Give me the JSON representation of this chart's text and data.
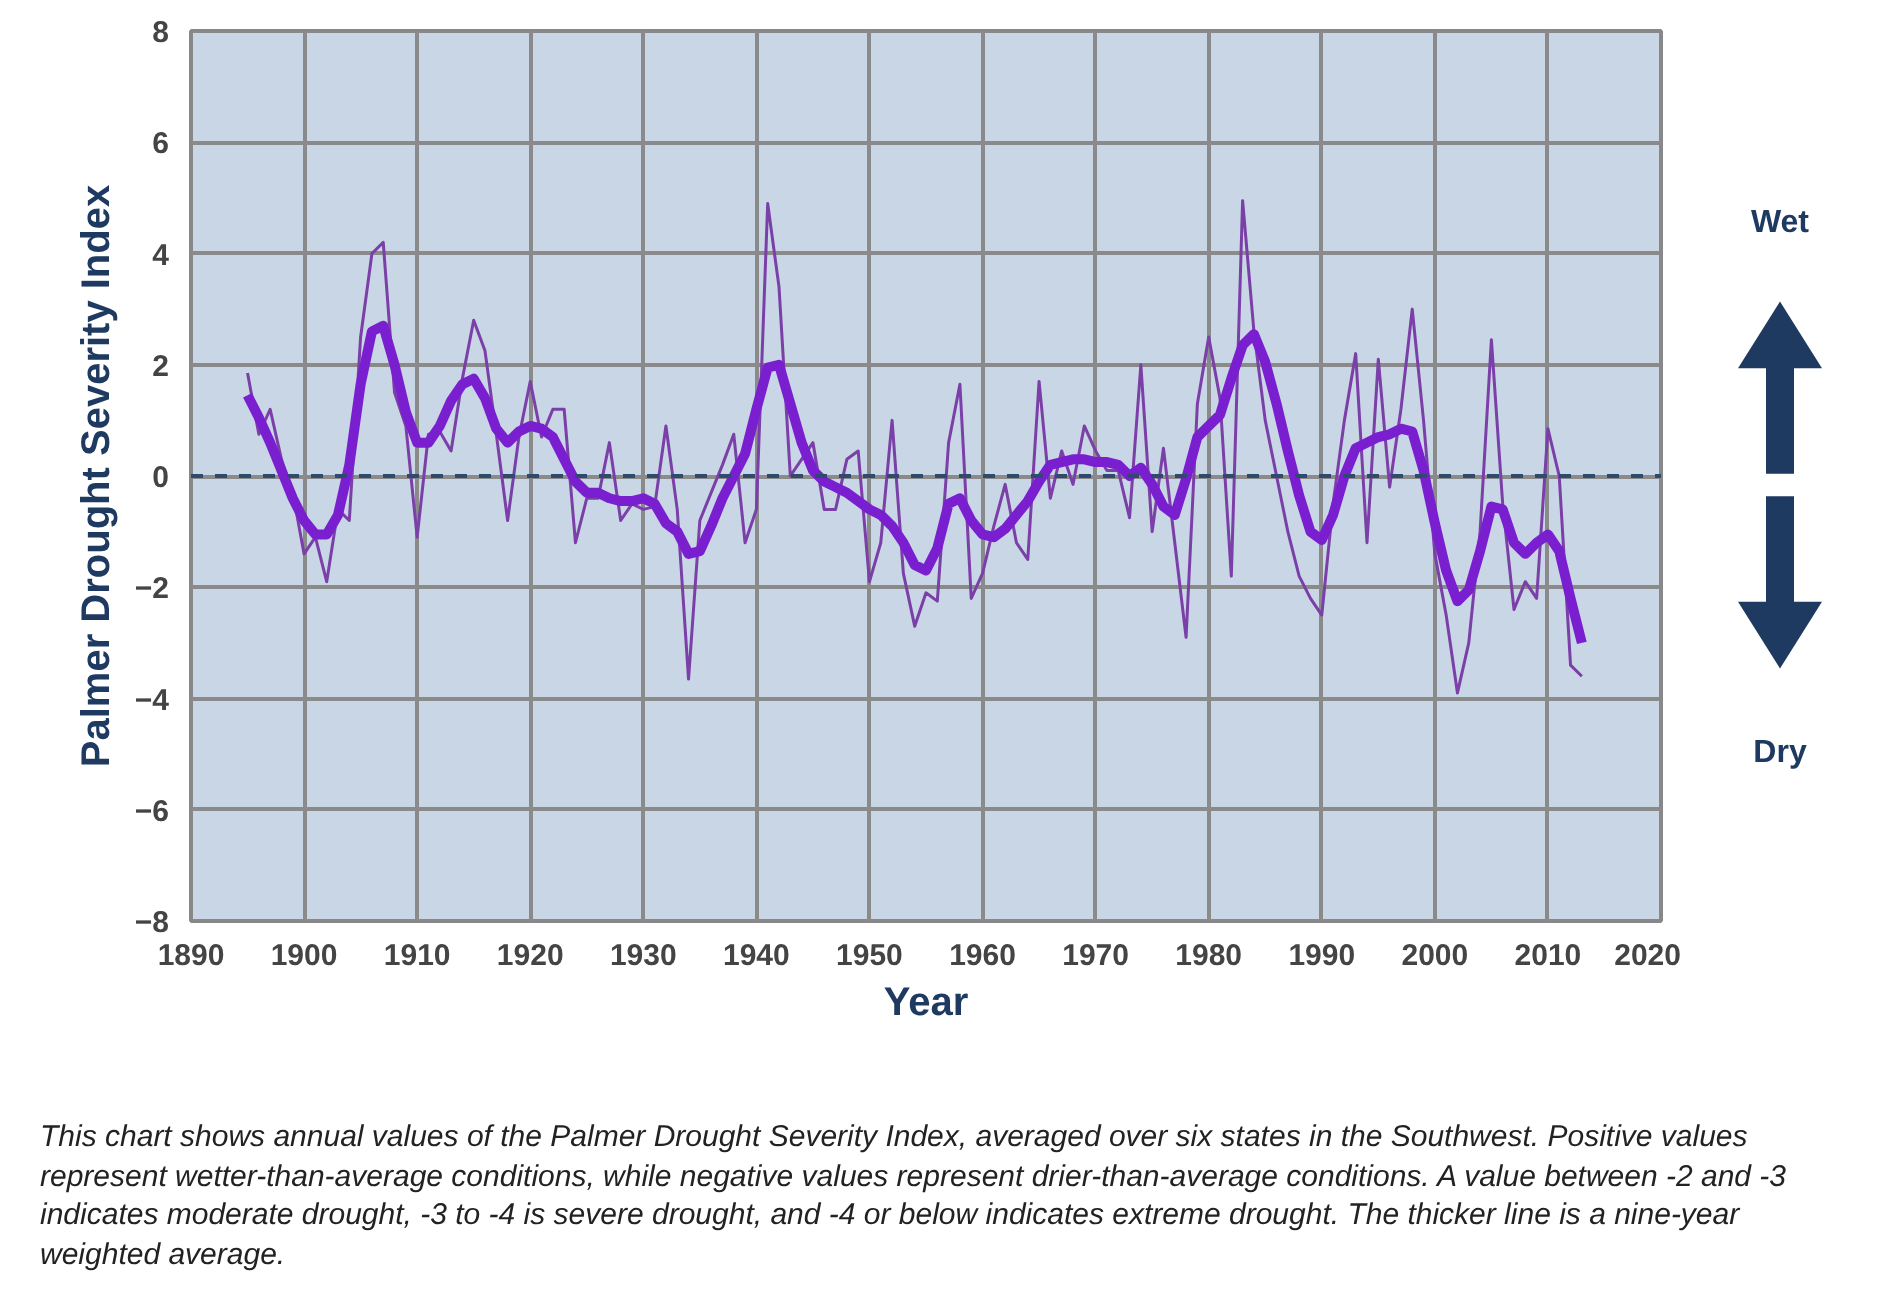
{
  "chart_data": {
    "type": "line",
    "ylabel": "Palmer Drought Severity Index",
    "xlabel": "Year",
    "x": [
      1895,
      1896,
      1897,
      1898,
      1899,
      1900,
      1901,
      1902,
      1903,
      1904,
      1905,
      1906,
      1907,
      1908,
      1909,
      1910,
      1911,
      1912,
      1913,
      1914,
      1915,
      1916,
      1917,
      1918,
      1919,
      1920,
      1921,
      1922,
      1923,
      1924,
      1925,
      1926,
      1927,
      1928,
      1929,
      1930,
      1931,
      1932,
      1933,
      1934,
      1935,
      1936,
      1937,
      1938,
      1939,
      1940,
      1941,
      1942,
      1943,
      1944,
      1945,
      1946,
      1947,
      1948,
      1949,
      1950,
      1951,
      1952,
      1953,
      1954,
      1955,
      1956,
      1957,
      1958,
      1959,
      1960,
      1961,
      1962,
      1963,
      1964,
      1965,
      1966,
      1967,
      1968,
      1969,
      1970,
      1971,
      1972,
      1973,
      1974,
      1975,
      1976,
      1977,
      1978,
      1979,
      1980,
      1981,
      1982,
      1983,
      1984,
      1985,
      1986,
      1987,
      1988,
      1989,
      1990,
      1991,
      1992,
      1993,
      1994,
      1995,
      1996,
      1997,
      1998,
      1999,
      2000,
      2001,
      2002,
      2003,
      2004,
      2005,
      2006,
      2007,
      2008,
      2009,
      2010,
      2011,
      2012,
      2013
    ],
    "series": [
      {
        "color": "#7b3fa8",
        "values": [
          1.85,
          0.75,
          1.2,
          0.3,
          -0.3,
          -1.4,
          -1.1,
          -1.9,
          -0.6,
          -0.8,
          2.5,
          4.0,
          4.2,
          1.5,
          0.9,
          -1.1,
          0.75,
          0.8,
          0.45,
          1.75,
          2.8,
          2.25,
          0.75,
          -0.8,
          0.7,
          1.7,
          0.7,
          1.2,
          1.2,
          -1.2,
          -0.4,
          -0.4,
          0.6,
          -0.8,
          -0.5,
          -0.6,
          -0.55,
          0.9,
          -0.6,
          -3.65,
          -0.8,
          -0.3,
          0.2,
          0.75,
          -1.2,
          -0.6,
          4.9,
          3.4,
          0.0,
          0.3,
          0.6,
          -0.6,
          -0.6,
          0.3,
          0.45,
          -1.9,
          -1.2,
          1.0,
          -1.75,
          -2.7,
          -2.1,
          -2.25,
          0.6,
          1.65,
          -2.2,
          -1.75,
          -0.9,
          -0.15,
          -1.2,
          -1.5,
          1.7,
          -0.4,
          0.45,
          -0.15,
          0.9,
          0.45,
          0.1,
          0.1,
          -0.75,
          2.0,
          -1.0,
          0.5,
          -1.2,
          -2.9,
          1.3,
          2.5,
          1.4,
          -1.8,
          4.95,
          2.6,
          1.0,
          0.0,
          -1.0,
          -1.8,
          -2.2,
          -2.5,
          -0.5,
          1.0,
          2.2,
          -1.2,
          2.1,
          -0.2,
          1.2,
          3.0,
          1.0,
          -1.4,
          -2.5,
          -3.9,
          -3.0,
          -1.0,
          2.45,
          -0.5,
          -2.4,
          -1.9,
          -2.2,
          0.85,
          0.0,
          -3.4,
          -3.6
        ]
      },
      {
        "color": "#7a1fd0",
        "values": [
          1.45,
          1.05,
          0.6,
          0.1,
          -0.4,
          -0.8,
          -1.05,
          -1.05,
          -0.7,
          0.2,
          1.65,
          2.6,
          2.7,
          2.0,
          1.15,
          0.6,
          0.6,
          0.9,
          1.35,
          1.65,
          1.75,
          1.4,
          0.85,
          0.6,
          0.8,
          0.9,
          0.85,
          0.7,
          0.3,
          -0.1,
          -0.3,
          -0.3,
          -0.4,
          -0.45,
          -0.45,
          -0.4,
          -0.5,
          -0.85,
          -1.0,
          -1.4,
          -1.35,
          -0.9,
          -0.4,
          0.0,
          0.4,
          1.2,
          1.95,
          2.0,
          1.3,
          0.6,
          0.1,
          -0.1,
          -0.2,
          -0.3,
          -0.45,
          -0.6,
          -0.7,
          -0.9,
          -1.2,
          -1.6,
          -1.7,
          -1.3,
          -0.5,
          -0.4,
          -0.8,
          -1.05,
          -1.1,
          -0.95,
          -0.7,
          -0.45,
          -0.1,
          0.2,
          0.25,
          0.3,
          0.3,
          0.25,
          0.25,
          0.2,
          0.0,
          0.15,
          -0.15,
          -0.55,
          -0.7,
          -0.05,
          0.7,
          0.9,
          1.1,
          1.75,
          2.35,
          2.55,
          2.05,
          1.3,
          0.45,
          -0.35,
          -1.0,
          -1.15,
          -0.7,
          0.0,
          0.5,
          0.6,
          0.7,
          0.75,
          0.85,
          0.8,
          0.1,
          -0.85,
          -1.7,
          -2.25,
          -2.05,
          -1.35,
          -0.55,
          -0.6,
          -1.2,
          -1.4,
          -1.2,
          -1.05,
          -1.35,
          -2.2,
          -3.0
        ]
      }
    ],
    "xlim": [
      1890,
      2020
    ],
    "ylim": [
      -8,
      8
    ],
    "xticks": [
      1890,
      1900,
      1910,
      1920,
      1930,
      1940,
      1950,
      1960,
      1970,
      1980,
      1990,
      2000,
      2010,
      2020
    ],
    "yticks": [
      -8,
      -6,
      -4,
      -2,
      0,
      2,
      4,
      6,
      8
    ],
    "grid": true,
    "marker": "none",
    "line_style": "solid",
    "ref_lines": [
      {
        "axis": "y",
        "value": 0,
        "color": "#2e4a6e",
        "line_style": "dashed"
      }
    ],
    "annotations": [
      "Wet",
      "Dry",
      "This chart shows annual values of the Palmer Drought Severity Index, averaged over six states in the Southwest. Positive values represent wetter-than-average conditions, while negative values represent drier-than-average conditions. A value between -2 and -3 indicates moderate drought, -3 to -4 is severe drought, and -4 or below indicates extreme drought. The thicker line is a nine-year weighted average."
    ]
  }
}
